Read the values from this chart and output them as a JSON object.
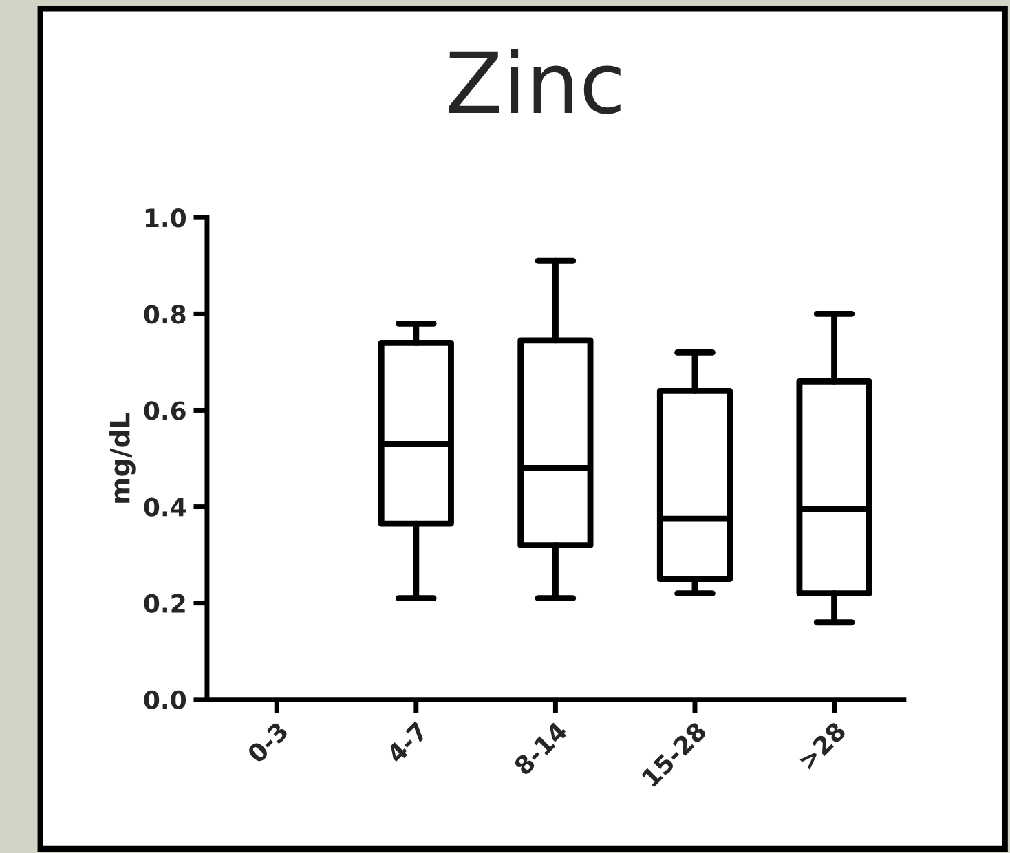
{
  "chart_data": {
    "type": "box",
    "title": "Zinc",
    "ylabel": "mg/dL",
    "categories": [
      "0-3",
      "4-7",
      "8-14",
      "15-28",
      ">28"
    ],
    "boxes": [
      null,
      {
        "low": 0.21,
        "q1": 0.365,
        "median": 0.53,
        "q3": 0.74,
        "high": 0.78
      },
      {
        "low": 0.21,
        "q1": 0.32,
        "median": 0.48,
        "q3": 0.745,
        "high": 0.91
      },
      {
        "low": 0.22,
        "q1": 0.25,
        "median": 0.375,
        "q3": 0.64,
        "high": 0.72
      },
      {
        "low": 0.16,
        "q1": 0.22,
        "median": 0.395,
        "q3": 0.66,
        "high": 0.8
      }
    ],
    "ylim": [
      0,
      1.0
    ],
    "yticks": [
      {
        "value": 0,
        "label": "0.0"
      },
      {
        "value": 0.2,
        "label": "0.2"
      },
      {
        "value": 0.4,
        "label": "0.4"
      },
      {
        "value": 0.6,
        "label": "0.6"
      },
      {
        "value": 0.8,
        "label": "0.8"
      },
      {
        "value": 1.0,
        "label": "1.0"
      }
    ],
    "grid": false,
    "color": "#000000"
  }
}
